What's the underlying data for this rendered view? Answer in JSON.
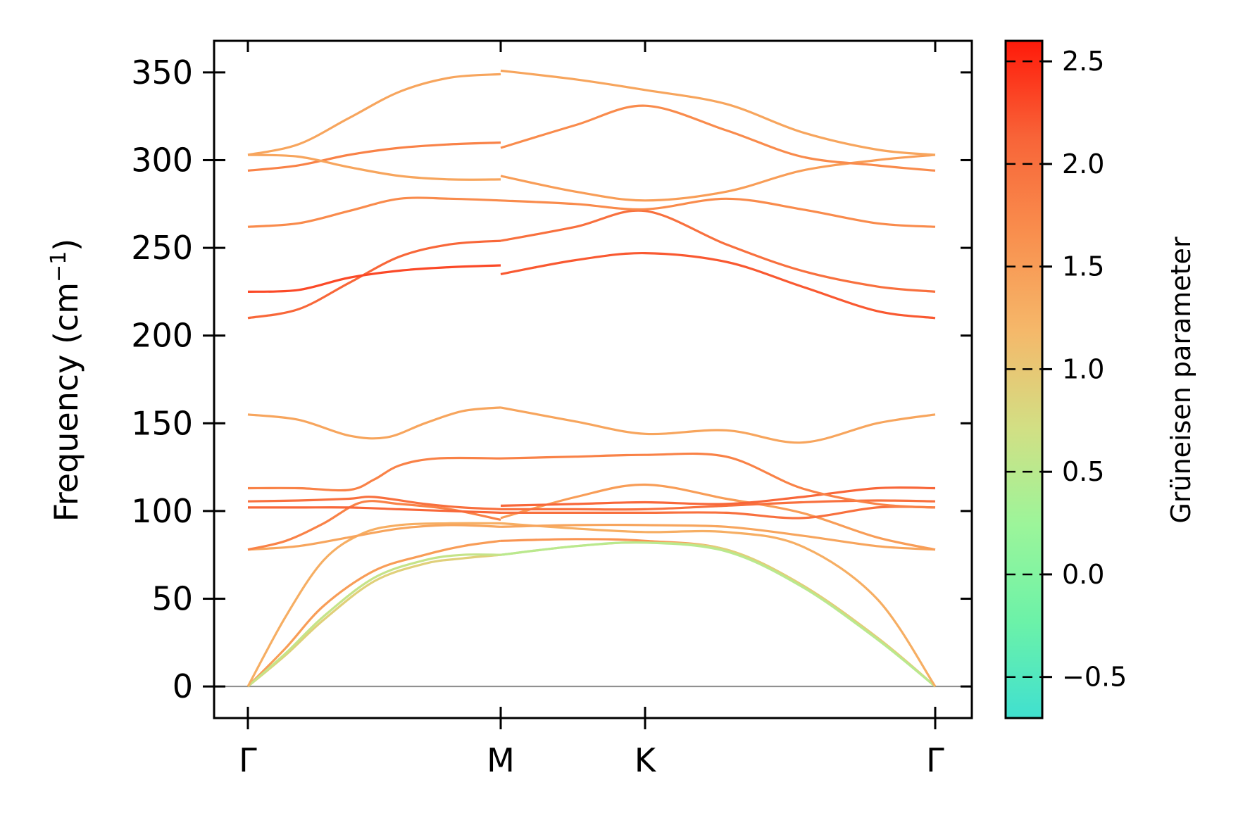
{
  "chart_data": {
    "type": "line",
    "title": "",
    "ylabel": "Frequency (cm",
    "ylabel_sup": "−1",
    "ylabel_close": ")",
    "ylim": [
      -18,
      368
    ],
    "yticks": [
      0,
      50,
      100,
      150,
      200,
      250,
      300,
      350
    ],
    "xlim": [
      0,
      2.5
    ],
    "high_symmetry_points": [
      {
        "label": "Γ",
        "x": 0.0
      },
      {
        "label": "M",
        "x": 1.0
      },
      {
        "label": "K",
        "x": 1.577
      },
      {
        "label": "Γ",
        "x": 2.732
      }
    ],
    "colorbar": {
      "title": "Grüneisen parameter",
      "range": [
        -0.7,
        2.6
      ],
      "ticks": [
        -0.5,
        0.0,
        0.5,
        1.0,
        1.5,
        2.0,
        2.5
      ],
      "tick_labels": [
        "−0.5",
        "0.0",
        "0.5",
        "1.0",
        "1.5",
        "2.0",
        "2.5"
      ],
      "colormap": [
        "#40e0d0",
        "#6cf2a8",
        "#9cf59a",
        "#d2df84",
        "#f5b86a",
        "#f98f4e",
        "#f86438",
        "#ff1a0a"
      ]
    },
    "series": [
      {
        "segment": "Γ-M",
        "points": [
          [
            0,
            0
          ],
          [
            0.15,
            22
          ],
          [
            0.3,
            46
          ],
          [
            0.5,
            66
          ],
          [
            0.7,
            75
          ],
          [
            0.85,
            80
          ],
          [
            1,
            83
          ]
        ],
        "gamma": 1.5
      },
      {
        "segment": "Γ-M",
        "points": [
          [
            0,
            0
          ],
          [
            0.15,
            18
          ],
          [
            0.3,
            38
          ],
          [
            0.5,
            60
          ],
          [
            0.7,
            70
          ],
          [
            0.85,
            73
          ],
          [
            1,
            75
          ]
        ],
        "gamma": 0.9
      },
      {
        "segment": "Γ-M",
        "points": [
          [
            0,
            0
          ],
          [
            0.15,
            19
          ],
          [
            0.3,
            40
          ],
          [
            0.5,
            62
          ],
          [
            0.7,
            72
          ],
          [
            0.85,
            75
          ],
          [
            1,
            75
          ]
        ],
        "gamma": 0.6
      },
      {
        "segment": "Γ-M",
        "points": [
          [
            0,
            0
          ],
          [
            0.15,
            40
          ],
          [
            0.3,
            72
          ],
          [
            0.45,
            87
          ],
          [
            0.6,
            92
          ],
          [
            0.8,
            93
          ],
          [
            1,
            93
          ]
        ],
        "gamma": 1.3
      },
      {
        "segment": "Γ-M",
        "points": [
          [
            0,
            78
          ],
          [
            0.2,
            80
          ],
          [
            0.4,
            85
          ],
          [
            0.6,
            90
          ],
          [
            0.8,
            92
          ],
          [
            1,
            91
          ]
        ],
        "gamma": 1.4
      },
      {
        "segment": "Γ-M",
        "points": [
          [
            0,
            78
          ],
          [
            0.15,
            83
          ],
          [
            0.3,
            93
          ],
          [
            0.45,
            105
          ],
          [
            0.6,
            104
          ],
          [
            0.8,
            101
          ],
          [
            1,
            95
          ]
        ],
        "gamma": 1.8
      },
      {
        "segment": "Γ-M",
        "points": [
          [
            0,
            102
          ],
          [
            0.2,
            102
          ],
          [
            0.4,
            102
          ],
          [
            0.6,
            101
          ],
          [
            0.8,
            100
          ],
          [
            1,
            99
          ]
        ],
        "gamma": 2.1
      },
      {
        "segment": "Γ-M",
        "points": [
          [
            0,
            105.5
          ],
          [
            0.2,
            106
          ],
          [
            0.4,
            107
          ],
          [
            0.5,
            108
          ],
          [
            0.7,
            104
          ],
          [
            0.85,
            102
          ],
          [
            1,
            101
          ]
        ],
        "gamma": 2.0
      },
      {
        "segment": "Γ-M",
        "points": [
          [
            0,
            113
          ],
          [
            0.2,
            113
          ],
          [
            0.4,
            112
          ],
          [
            0.5,
            118
          ],
          [
            0.6,
            126
          ],
          [
            0.75,
            130
          ],
          [
            1,
            130
          ]
        ],
        "gamma": 1.8
      },
      {
        "segment": "Γ-M",
        "points": [
          [
            0,
            155
          ],
          [
            0.2,
            152
          ],
          [
            0.4,
            143
          ],
          [
            0.55,
            142
          ],
          [
            0.7,
            150
          ],
          [
            0.85,
            157
          ],
          [
            1,
            159
          ]
        ],
        "gamma": 1.4
      },
      {
        "segment": "Γ-M",
        "points": [
          [
            0,
            210
          ],
          [
            0.2,
            215
          ],
          [
            0.4,
            230
          ],
          [
            0.6,
            245
          ],
          [
            0.8,
            252
          ],
          [
            1,
            254
          ]
        ],
        "gamma": 2.1
      },
      {
        "segment": "Γ-M",
        "points": [
          [
            0,
            225
          ],
          [
            0.2,
            226
          ],
          [
            0.4,
            233
          ],
          [
            0.6,
            237
          ],
          [
            0.8,
            239
          ],
          [
            1,
            240
          ]
        ],
        "gamma": 2.3
      },
      {
        "segment": "Γ-M",
        "points": [
          [
            0,
            262
          ],
          [
            0.2,
            264
          ],
          [
            0.4,
            271
          ],
          [
            0.6,
            278
          ],
          [
            0.8,
            278
          ],
          [
            1,
            277
          ]
        ],
        "gamma": 1.7
      },
      {
        "segment": "Γ-M",
        "points": [
          [
            0,
            294
          ],
          [
            0.2,
            297
          ],
          [
            0.4,
            303
          ],
          [
            0.6,
            307
          ],
          [
            0.8,
            309
          ],
          [
            1,
            310
          ]
        ],
        "gamma": 1.8
      },
      {
        "segment": "Γ-M",
        "points": [
          [
            0,
            303
          ],
          [
            0.2,
            302
          ],
          [
            0.4,
            296
          ],
          [
            0.6,
            291
          ],
          [
            0.8,
            289
          ],
          [
            1,
            289
          ]
        ],
        "gamma": 1.4
      },
      {
        "segment": "Γ-M",
        "points": [
          [
            0,
            303
          ],
          [
            0.2,
            309
          ],
          [
            0.4,
            324
          ],
          [
            0.6,
            339
          ],
          [
            0.8,
            347
          ],
          [
            1,
            349
          ]
        ],
        "gamma": 1.4
      }
    ]
  }
}
